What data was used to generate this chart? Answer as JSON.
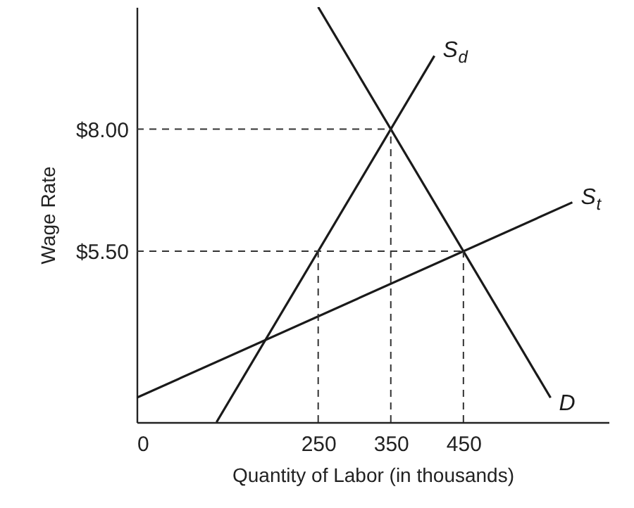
{
  "chart_data": {
    "type": "line",
    "xlabel": "Quantity of Labor (in thousands)",
    "ylabel": "Wage Rate",
    "xlim": [
      0,
      650
    ],
    "ylim": [
      2,
      10.5
    ],
    "xticks": [
      0,
      250,
      350,
      450
    ],
    "yticks": [
      {
        "value": 5.5,
        "label": "$5.50"
      },
      {
        "value": 8,
        "label": "$8.00"
      }
    ],
    "series": [
      {
        "name": "S$_{d}$",
        "color": "#1a1a1a",
        "x": [
          110,
          410
        ],
        "values": [
          2,
          9.5
        ]
      },
      {
        "name": "S$_{t}$",
        "color": "#1a1a1a",
        "x": [
          0,
          600
        ],
        "values": [
          2.5,
          6.5
        ]
      },
      {
        "name": "D",
        "color": "#1a1a1a",
        "x": [
          250,
          570
        ],
        "values": [
          10.5,
          2.5
        ]
      }
    ],
    "ref_lines": [
      {
        "axis": "y",
        "value": 8,
        "line_style": "dashed"
      },
      {
        "axis": "y",
        "value": 5.5,
        "line_style": "dashed"
      },
      {
        "axis": "x",
        "value": 250,
        "line_style": "dashed"
      },
      {
        "axis": "x",
        "value": 350,
        "line_style": "dashed"
      },
      {
        "axis": "x",
        "value": 450,
        "line_style": "dashed"
      }
    ]
  }
}
